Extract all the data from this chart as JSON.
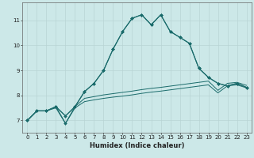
{
  "xlabel": "Humidex (Indice chaleur)",
  "bg_color": "#cce8e8",
  "grid_color": "#b8d4d4",
  "line_color": "#1a6b6b",
  "xlim": [
    -0.5,
    23.5
  ],
  "ylim": [
    6.5,
    11.7
  ],
  "yticks": [
    7,
    8,
    9,
    10,
    11
  ],
  "xticks": [
    0,
    1,
    2,
    3,
    4,
    5,
    6,
    7,
    8,
    9,
    10,
    11,
    12,
    13,
    14,
    15,
    16,
    17,
    18,
    19,
    20,
    21,
    22,
    23
  ],
  "series": [
    {
      "x": [
        0,
        1,
        2,
        3,
        4,
        5,
        6,
        7,
        8,
        9,
        10,
        11,
        12,
        13,
        14,
        15,
        16,
        17,
        18,
        19,
        20,
        21,
        22,
        23
      ],
      "y": [
        7.0,
        7.38,
        7.38,
        7.5,
        6.88,
        7.5,
        7.75,
        7.82,
        7.88,
        7.93,
        7.97,
        8.02,
        8.08,
        8.13,
        8.17,
        8.22,
        8.27,
        8.32,
        8.37,
        8.42,
        8.1,
        8.38,
        8.42,
        8.3
      ],
      "marker": false,
      "lw": 0.7
    },
    {
      "x": [
        0,
        1,
        2,
        3,
        4,
        5,
        6,
        7,
        8,
        9,
        10,
        11,
        12,
        13,
        14,
        15,
        16,
        17,
        18,
        19,
        20,
        21,
        22,
        23
      ],
      "y": [
        7.0,
        7.38,
        7.38,
        7.55,
        7.18,
        7.55,
        7.88,
        7.95,
        8.02,
        8.07,
        8.12,
        8.17,
        8.23,
        8.28,
        8.32,
        8.37,
        8.42,
        8.47,
        8.52,
        8.57,
        8.2,
        8.48,
        8.52,
        8.4
      ],
      "marker": false,
      "lw": 0.7
    },
    {
      "x": [
        0,
        1,
        2,
        3,
        4,
        5,
        6,
        7,
        8,
        9,
        10,
        11,
        12,
        13,
        14,
        15,
        16,
        17,
        18,
        19,
        20,
        21,
        22,
        23
      ],
      "y": [
        7.0,
        7.38,
        7.38,
        7.55,
        6.88,
        7.55,
        8.15,
        8.48,
        9.0,
        9.85,
        10.55,
        11.08,
        11.22,
        10.82,
        11.22,
        10.55,
        10.32,
        10.08,
        9.08,
        8.72,
        8.48,
        8.38,
        8.48,
        8.32
      ],
      "marker": true,
      "lw": 0.8
    },
    {
      "x": [
        0,
        1,
        2,
        3,
        4,
        5,
        6,
        7,
        8,
        9,
        10,
        11,
        12,
        13,
        14,
        15,
        16,
        17,
        18,
        19,
        20,
        21,
        22,
        23
      ],
      "y": [
        7.0,
        7.38,
        7.38,
        7.55,
        7.18,
        7.55,
        8.15,
        8.48,
        9.0,
        9.85,
        10.55,
        11.08,
        11.22,
        10.82,
        11.22,
        10.55,
        10.32,
        10.08,
        9.08,
        8.72,
        8.48,
        8.38,
        8.48,
        8.32
      ],
      "marker": true,
      "lw": 0.8
    }
  ],
  "xlabel_fontsize": 6.0,
  "tick_fontsize": 5.0
}
